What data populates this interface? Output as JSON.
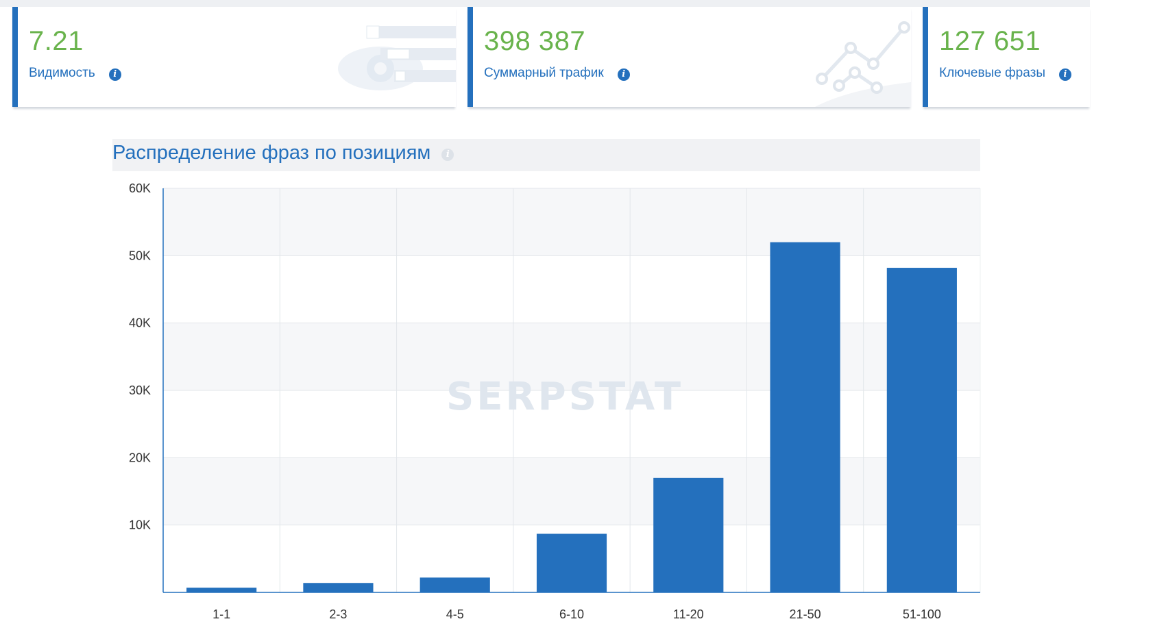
{
  "cards": [
    {
      "value": "7.21",
      "label": "Видимость",
      "icon": "eye-bars-deco-icon"
    },
    {
      "value": "398 387",
      "label": "Суммарный трафик",
      "icon": "line-chart-deco-icon"
    },
    {
      "value": "127 651",
      "label": "Ключевые фразы",
      "icon": "info-icon"
    }
  ],
  "chart": {
    "title": "Распределение фраз по позициям",
    "watermark": "SERPSTAT"
  },
  "colors": {
    "accent": "#2470bd",
    "value_green": "#69b34c",
    "bar": "#2470bd"
  },
  "chart_data": {
    "type": "bar",
    "categories": [
      "1-1",
      "2-3",
      "4-5",
      "6-10",
      "11-20",
      "21-50",
      "51-100"
    ],
    "values": [
      700,
      1400,
      2200,
      8700,
      17000,
      52000,
      48200
    ],
    "ylim": [
      0,
      60000
    ],
    "yticks": [
      "10K",
      "20K",
      "30K",
      "40K",
      "50K",
      "60K"
    ],
    "ytick_values": [
      10000,
      20000,
      30000,
      40000,
      50000,
      60000
    ],
    "grid": true,
    "xlabel": "",
    "ylabel": ""
  }
}
